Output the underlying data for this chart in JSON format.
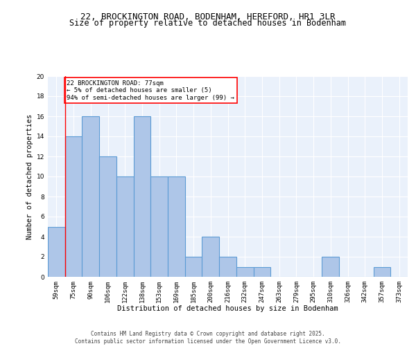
{
  "title": "22, BROCKINGTON ROAD, BODENHAM, HEREFORD, HR1 3LR",
  "subtitle": "Size of property relative to detached houses in Bodenham",
  "xlabel": "Distribution of detached houses by size in Bodenham",
  "ylabel": "Number of detached properties",
  "bin_labels": [
    "59sqm",
    "75sqm",
    "90sqm",
    "106sqm",
    "122sqm",
    "138sqm",
    "153sqm",
    "169sqm",
    "185sqm",
    "200sqm",
    "216sqm",
    "232sqm",
    "247sqm",
    "263sqm",
    "279sqm",
    "295sqm",
    "310sqm",
    "326sqm",
    "342sqm",
    "357sqm",
    "373sqm"
  ],
  "bar_heights": [
    5,
    14,
    16,
    12,
    10,
    16,
    10,
    10,
    2,
    4,
    2,
    1,
    1,
    0,
    0,
    0,
    2,
    0,
    0,
    1,
    0
  ],
  "bar_color": "#aec6e8",
  "bar_edge_color": "#5b9bd5",
  "red_line_x": 1,
  "annotation_text": "22 BROCKINGTON ROAD: 77sqm\n← 5% of detached houses are smaller (5)\n94% of semi-detached houses are larger (99) →",
  "annotation_box_color": "white",
  "annotation_box_edge": "red",
  "ylim": [
    0,
    20
  ],
  "yticks": [
    0,
    2,
    4,
    6,
    8,
    10,
    12,
    14,
    16,
    18,
    20
  ],
  "footer": "Contains HM Land Registry data © Crown copyright and database right 2025.\nContains public sector information licensed under the Open Government Licence v3.0.",
  "bg_color": "#eaf1fb",
  "grid_color": "#ffffff",
  "title_fontsize": 9,
  "subtitle_fontsize": 8.5,
  "axis_label_fontsize": 7.5,
  "tick_fontsize": 6.5,
  "annotation_fontsize": 6.5,
  "footer_fontsize": 5.5
}
